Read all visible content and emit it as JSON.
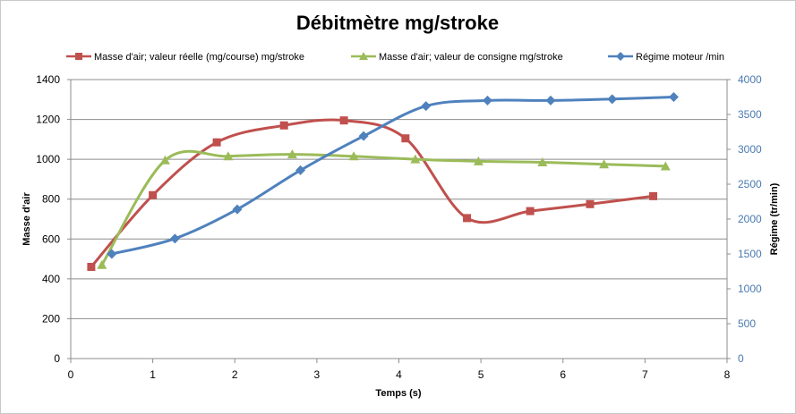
{
  "chart_data": {
    "type": "line",
    "title": "Débitmètre mg/stroke",
    "xlabel": "Temps (s)",
    "ylabel": "Masse d'air",
    "y2label": "Régime (tr/min)",
    "xlim": [
      0,
      8
    ],
    "ylim": [
      0,
      1400
    ],
    "y2lim": [
      0,
      4000
    ],
    "xticks": [
      "0",
      "1",
      "2",
      "3",
      "4",
      "5",
      "6",
      "7",
      "8"
    ],
    "yticks": [
      "0",
      "200",
      "400",
      "600",
      "800",
      "1000",
      "1200",
      "1400"
    ],
    "y2ticks": [
      "0",
      "500",
      "1000",
      "1500",
      "2000",
      "2500",
      "3000",
      "3500",
      "4000"
    ],
    "grid": "horizontal",
    "legend_position": "top",
    "series": [
      {
        "name": "Masse d'air; valeur réelle (mg/course) mg/stroke",
        "axis": "left",
        "color": "#c0504d",
        "marker": "square",
        "x": [
          0.25,
          1.0,
          1.78,
          2.6,
          3.33,
          4.08,
          4.83,
          5.6,
          6.33,
          7.1
        ],
        "y": [
          460,
          820,
          1085,
          1170,
          1195,
          1105,
          705,
          740,
          775,
          815
        ]
      },
      {
        "name": "Masse d'air; valeur de consigne mg/stroke",
        "axis": "left",
        "color": "#9bbb59",
        "marker": "triangle",
        "x": [
          0.38,
          1.15,
          1.92,
          2.7,
          3.45,
          4.2,
          4.97,
          5.75,
          6.5,
          7.25
        ],
        "y": [
          470,
          995,
          1015,
          1025,
          1015,
          1000,
          990,
          985,
          975,
          965
        ]
      },
      {
        "name": "Régime moteur /min",
        "axis": "right",
        "color": "#4f81bd",
        "marker": "diamond",
        "x": [
          0.5,
          1.27,
          2.03,
          2.8,
          3.57,
          4.33,
          5.08,
          5.85,
          6.6,
          7.35
        ],
        "y": [
          1500,
          1720,
          2140,
          2700,
          3190,
          3620,
          3700,
          3700,
          3720,
          3750
        ]
      }
    ]
  }
}
